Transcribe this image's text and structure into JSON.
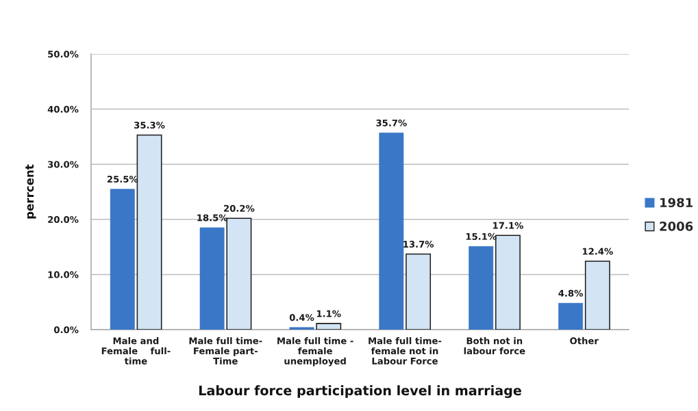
{
  "chart_data": {
    "type": "bar",
    "xlabel": "Labour force participation level in marriage",
    "ylabel": "perrcent",
    "categories": [
      "Male and\nFemale    full-\ntime",
      "Male full time-\nFemale part-\nTime",
      "Male full time -\nfemale\nunemployed",
      "Male full time-\nfemale not in\nLabour Force",
      "Both not in\nlabour force",
      "Other"
    ],
    "series": [
      {
        "name": "1981",
        "color": "#3a77c6",
        "values": [
          25.5,
          18.5,
          0.4,
          35.7,
          15.1,
          4.8
        ],
        "value_labels": [
          "25.5%",
          "18.5%",
          "0.4%",
          "35.7%",
          "15.1%",
          "4.8%"
        ]
      },
      {
        "name": "2006",
        "color": "#d3e5f5",
        "values": [
          35.3,
          20.2,
          1.1,
          13.7,
          17.1,
          12.4
        ],
        "value_labels": [
          "35.3%",
          "20.2%",
          "1.1%",
          "13.7%",
          "17.1%",
          "12.4%"
        ]
      }
    ],
    "ylim": [
      0,
      50
    ],
    "yticks": [
      {
        "value": 0,
        "label": "0.0%"
      },
      {
        "value": 10,
        "label": "10.0%"
      },
      {
        "value": 20,
        "label": "20.0%"
      },
      {
        "value": 30,
        "label": "30.0%"
      },
      {
        "value": 40,
        "label": "40.0%"
      },
      {
        "value": 50,
        "label": "50.0%"
      }
    ],
    "grid": "y",
    "legend": "right"
  }
}
